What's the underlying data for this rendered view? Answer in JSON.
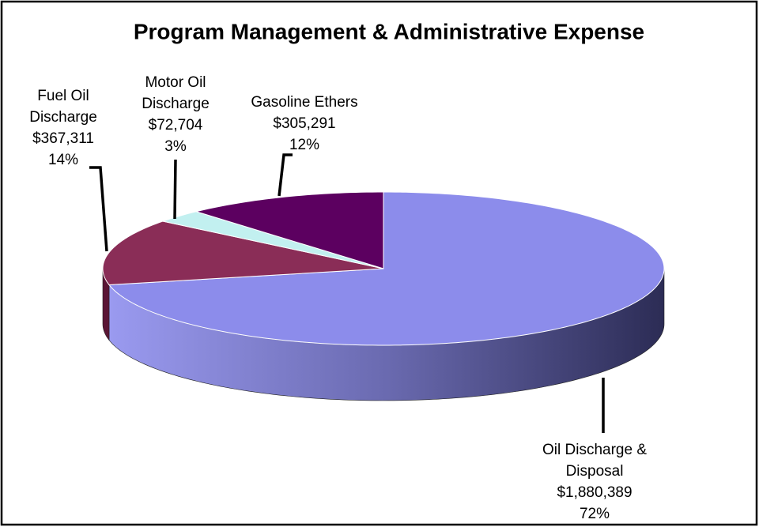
{
  "chart_data": {
    "type": "pie3d",
    "title": "Program Management & Administrative Expense",
    "categories": [
      [
        "Oil Discharge  &",
        "Disposal"
      ],
      [
        "Fuel Oil",
        "Discharge"
      ],
      [
        "Motor Oil",
        "Discharge"
      ],
      [
        "Gasoline Ethers"
      ]
    ],
    "values": [
      1880389,
      367311,
      72704,
      305291
    ],
    "value_labels": [
      "$1,880,389",
      "$367,311",
      "$72,704",
      "$305,291"
    ],
    "percents": [
      {
        "value": 72,
        "label": "72%"
      },
      {
        "value": 14,
        "label": "14%"
      },
      {
        "value": 3,
        "label": "3%"
      },
      {
        "value": 12,
        "label": "12%"
      }
    ],
    "colors": [
      "#8c8ceb",
      "#8a2d57",
      "#c2f0f0",
      "#5c0060"
    ]
  }
}
